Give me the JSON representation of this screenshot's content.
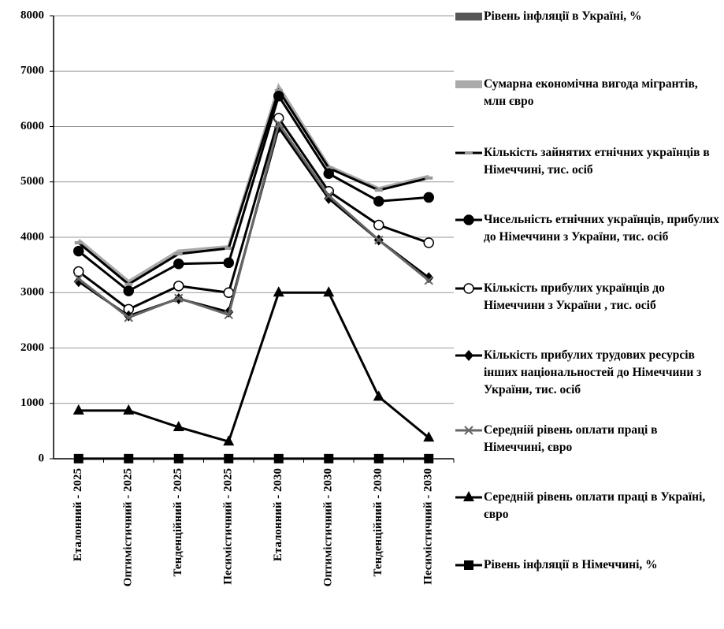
{
  "chart_data": {
    "type": "line",
    "categories": [
      "Еталонний - 2025",
      "Оптимістичний - 2025",
      "Тенденційний - 2025",
      "Песимістичний - 2025",
      "Еталонний - 2030",
      "Оптимістичний - 2030",
      "Тенденційний - 2030",
      "Песимістичний - 2030"
    ],
    "ylim": [
      0,
      8000
    ],
    "yticks": [
      0,
      1000,
      2000,
      3000,
      4000,
      5000,
      6000,
      7000,
      8000
    ],
    "grid": true,
    "legend": "right",
    "series": [
      {
        "name": "Рівень інфляції в Україні, %",
        "color": "#555555",
        "marker": "bar",
        "values": [
          10,
          8,
          9,
          12,
          7,
          6,
          8,
          11
        ]
      },
      {
        "name": "Сумарна економічна вигода мігрантів, млн євро",
        "color": "#aaaaaa",
        "marker": "wide",
        "values": [
          3950,
          3200,
          3750,
          3830,
          6720,
          5280,
          4880,
          5100
        ]
      },
      {
        "name": "Кількість зайнятих етнічних українців в Німеччині, тис. осіб",
        "color": "#000000",
        "marker": "dash",
        "values": [
          3900,
          3150,
          3700,
          3800,
          6650,
          5250,
          4850,
          5070
        ]
      },
      {
        "name": "Чисельність етнічних українців, прибулих до Німеччини з України, тис. осіб",
        "color": "#000000",
        "marker": "circle",
        "values": [
          3750,
          3030,
          3520,
          3540,
          6550,
          5150,
          4650,
          4720
        ]
      },
      {
        "name": "Кількість прибулих українців до Німеччини з України , тис. осіб",
        "color": "#000000",
        "marker": "open-circle",
        "values": [
          3380,
          2700,
          3120,
          3000,
          6150,
          4830,
          4220,
          3900
        ]
      },
      {
        "name": "Кількість прибулих трудових ресурсів інших національностей до Німеччини з України, тис. осіб",
        "color": "#000000",
        "marker": "diamond",
        "values": [
          3200,
          2580,
          2890,
          2650,
          5980,
          4700,
          3950,
          3270
        ]
      },
      {
        "name": "Середній рівень оплати праці в Німеччині, євро",
        "color": "#666666",
        "marker": "x",
        "values": [
          3250,
          2550,
          2900,
          2600,
          6050,
          4750,
          3950,
          3220
        ]
      },
      {
        "name": "Середній рівень оплати праці в Україні, євро",
        "color": "#000000",
        "marker": "triangle",
        "values": [
          870,
          870,
          570,
          310,
          3000,
          3000,
          1120,
          380
        ]
      },
      {
        "name": "Рівень інфляції в Німеччині, %",
        "color": "#000000",
        "marker": "square",
        "values": [
          2,
          2,
          2,
          2,
          2,
          2,
          2,
          2
        ]
      }
    ]
  }
}
